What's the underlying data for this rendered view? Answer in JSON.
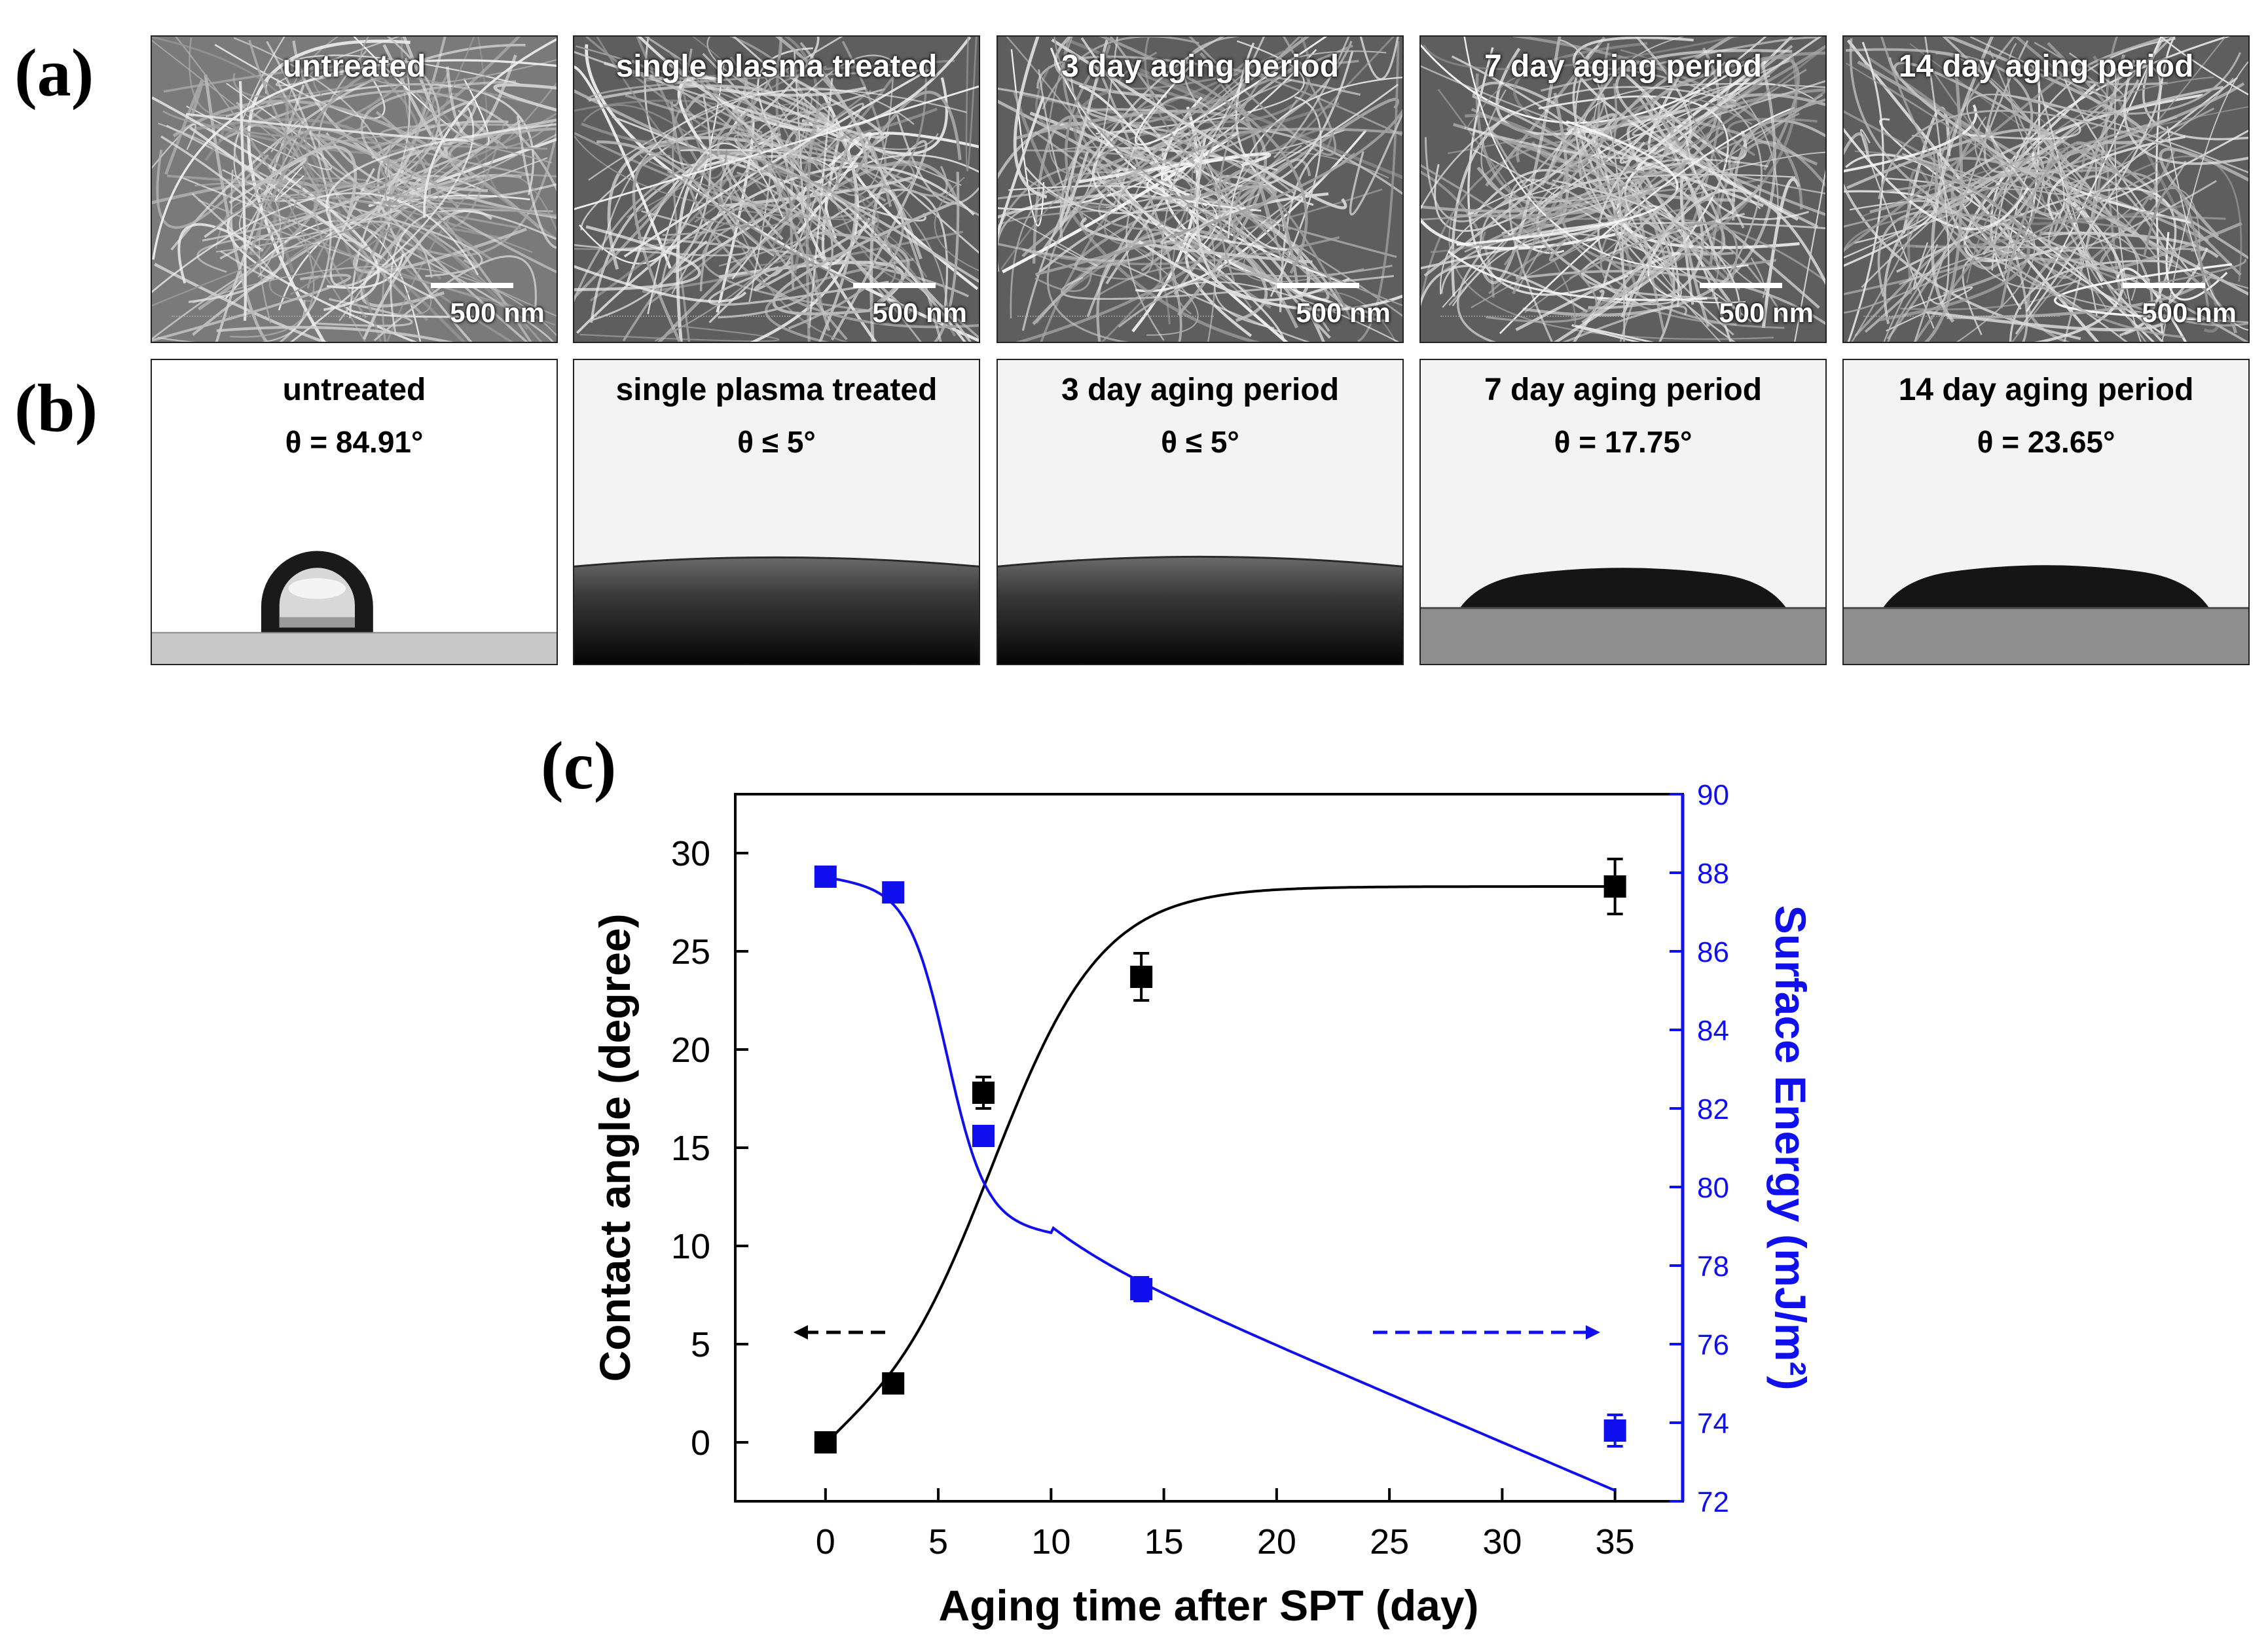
{
  "panels": {
    "a": "(a)",
    "b": "(b)",
    "c": "(c)"
  },
  "sem_images": [
    {
      "title": "untreated",
      "scale": "500 nm"
    },
    {
      "title": "single plasma treated",
      "scale": "500 nm"
    },
    {
      "title": "3 day aging period",
      "scale": "500 nm"
    },
    {
      "title": "7 day aging period",
      "scale": "500 nm"
    },
    {
      "title": "14 day aging period",
      "scale": "500 nm"
    }
  ],
  "droplet_images": [
    {
      "title": "untreated",
      "angle": "θ = 84.91°"
    },
    {
      "title": "single plasma treated",
      "angle": "θ ≤ 5°"
    },
    {
      "title": "3 day aging period",
      "angle": "θ ≤ 5°"
    },
    {
      "title": "7 day aging period",
      "angle": "θ = 17.75°"
    },
    {
      "title": "14 day aging period",
      "angle": "θ = 23.65°"
    }
  ],
  "chart_data": {
    "type": "scatter",
    "xlabel": "Aging time after SPT (day)",
    "ylabel_left": "Contact angle (degree)",
    "ylabel_right": "Surface Energy (mJ/m²)",
    "x_range": [
      -4,
      38
    ],
    "y_left_range": [
      -3,
      33
    ],
    "y_right_range": [
      72,
      90
    ],
    "x_ticks": [
      0,
      5,
      10,
      15,
      20,
      25,
      30,
      35
    ],
    "y_left_ticks": [
      0,
      5,
      10,
      15,
      20,
      25,
      30
    ],
    "y_right_ticks": [
      72,
      74,
      76,
      78,
      80,
      82,
      84,
      86,
      88,
      90
    ],
    "series": [
      {
        "name": "Contact angle",
        "axis": "left",
        "color": "#000000",
        "x": [
          0,
          3,
          7,
          14,
          35
        ],
        "y": [
          0,
          3,
          17.8,
          23.7,
          28.3
        ],
        "err": [
          0.2,
          0.3,
          0.8,
          1.2,
          1.4
        ]
      },
      {
        "name": "Surface Energy",
        "axis": "right",
        "color": "#1010ee",
        "x": [
          0,
          3,
          7,
          14,
          35
        ],
        "y": [
          87.9,
          87.5,
          81.3,
          77.4,
          73.8
        ],
        "err": [
          0.1,
          0.1,
          0.2,
          0.3,
          0.4
        ]
      }
    ]
  }
}
